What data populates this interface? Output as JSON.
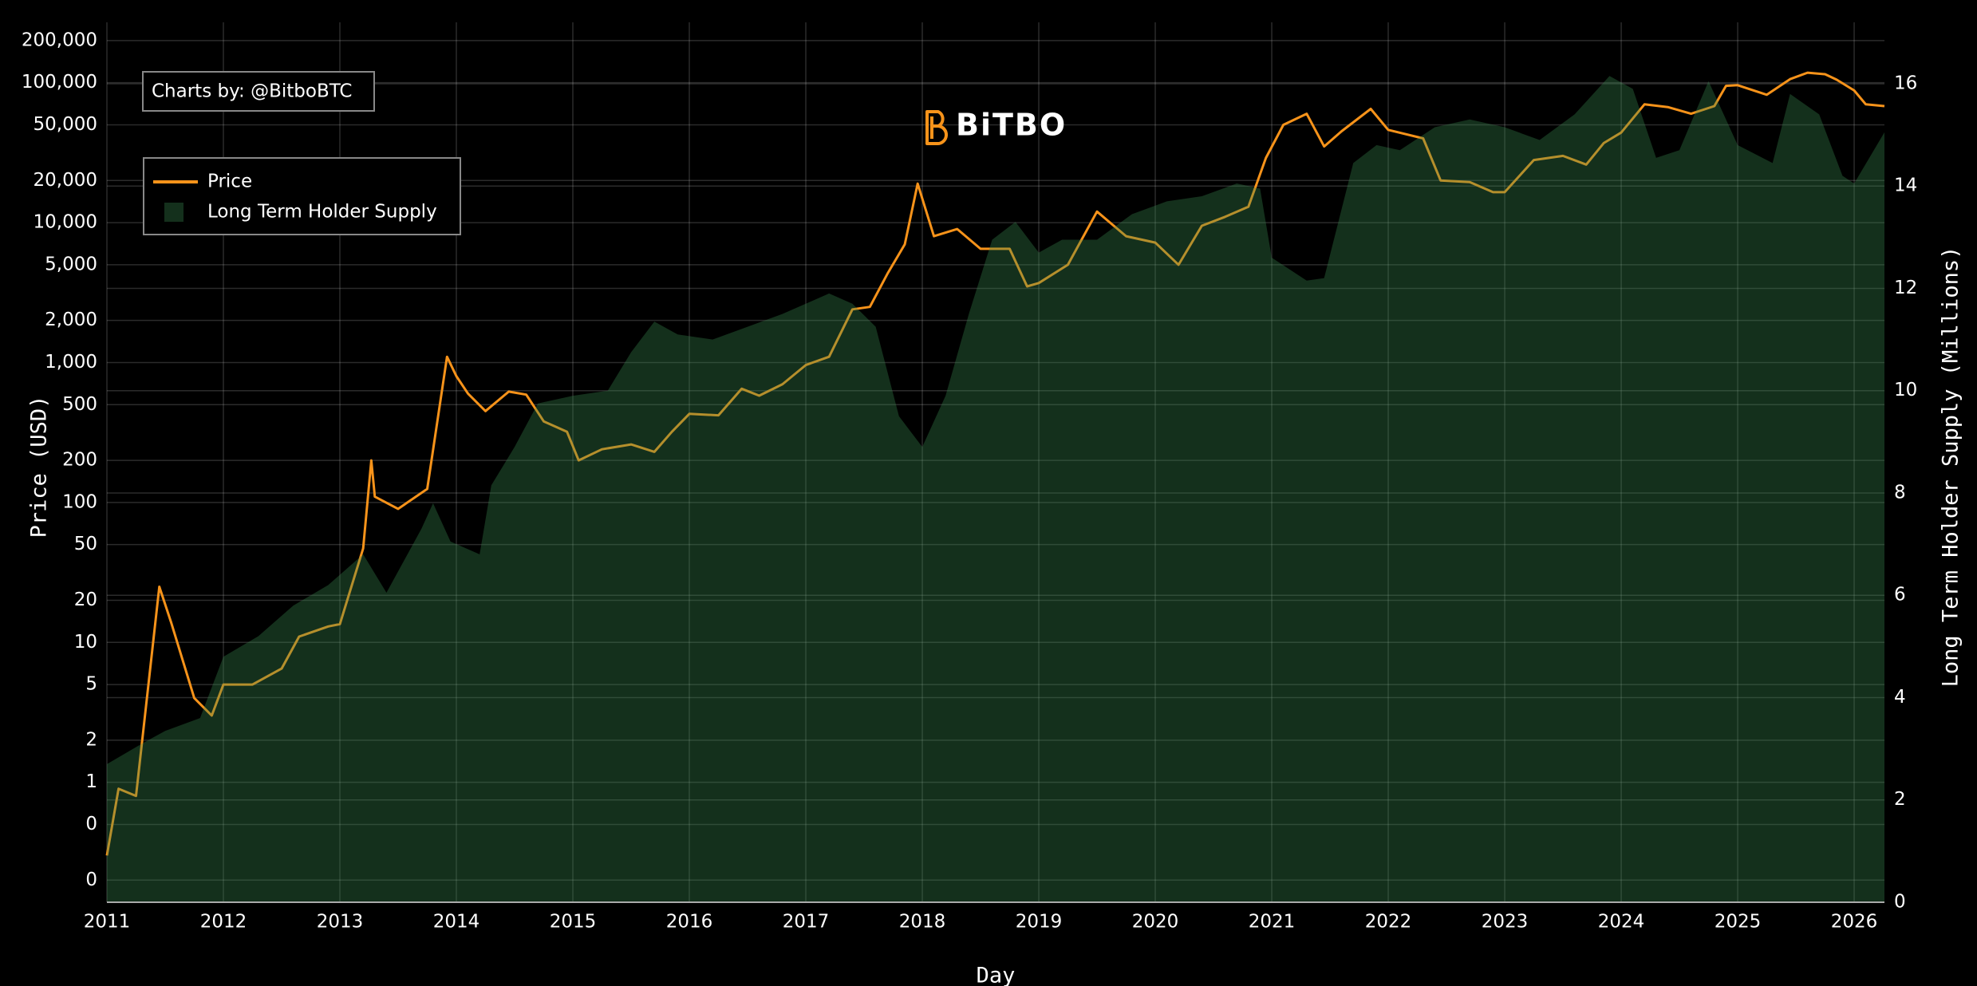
{
  "chart_data": {
    "type": "line",
    "annotation": "Charts by: @BitboBTC",
    "logo": "BiTBO",
    "x_label": "Day",
    "y_label": "Price (USD)",
    "y2_label": "Long Term Holder Supply (Millions)",
    "log_y": true,
    "grid": true,
    "legend": "top-left",
    "xlim": [
      2011,
      2026.26
    ],
    "xticks": [
      2011,
      2012,
      2013,
      2014,
      2015,
      2016,
      2017,
      2018,
      2019,
      2020,
      2021,
      2022,
      2023,
      2024,
      2025,
      2026
    ],
    "ylim": [
      0.139,
      270000
    ],
    "yticks": [
      {
        "value": 0.2,
        "label": "0"
      },
      {
        "value": 0.5,
        "label": "0"
      },
      1,
      2,
      5,
      10,
      20,
      50,
      100,
      200,
      500,
      {
        "value": 1000,
        "label": "1,000"
      },
      {
        "value": 2000,
        "label": "2,000"
      },
      {
        "value": 5000,
        "label": "5,000"
      },
      {
        "value": 10000,
        "label": "10,000"
      },
      {
        "value": 20000,
        "label": "20,000"
      },
      {
        "value": 50000,
        "label": "50,000"
      },
      {
        "value": 100000,
        "label": "100,000"
      },
      {
        "value": 200000,
        "label": "200,000"
      }
    ],
    "y2lim": [
      0,
      17.2
    ],
    "y2ticks": [
      0,
      2,
      4,
      6,
      8,
      10,
      12,
      14,
      16
    ],
    "series": [
      {
        "name": "Price",
        "color": "#f7931a",
        "style": "line",
        "x": [
          2011.0,
          2011.1,
          2011.25,
          2011.45,
          2011.55,
          2011.75,
          2011.9,
          2012.0,
          2012.25,
          2012.5,
          2012.65,
          2012.9,
          2013.0,
          2013.2,
          2013.27,
          2013.3,
          2013.5,
          2013.75,
          2013.92,
          2014.0,
          2014.1,
          2014.25,
          2014.45,
          2014.6,
          2014.75,
          2014.95,
          2015.05,
          2015.25,
          2015.5,
          2015.7,
          2015.85,
          2016.0,
          2016.25,
          2016.45,
          2016.6,
          2016.8,
          2017.0,
          2017.2,
          2017.4,
          2017.55,
          2017.7,
          2017.85,
          2017.96,
          2018.1,
          2018.3,
          2018.5,
          2018.75,
          2018.9,
          2019.0,
          2019.25,
          2019.5,
          2019.75,
          2020.0,
          2020.2,
          2020.4,
          2020.6,
          2020.8,
          2020.95,
          2021.1,
          2021.3,
          2021.45,
          2021.6,
          2021.85,
          2022.0,
          2022.3,
          2022.45,
          2022.7,
          2022.9,
          2023.0,
          2023.25,
          2023.5,
          2023.7,
          2023.85,
          2024.0,
          2024.2,
          2024.4,
          2024.6,
          2024.8,
          2024.9,
          2025.0,
          2025.25,
          2025.45,
          2025.6,
          2025.75,
          2025.85,
          2026.0,
          2026.1,
          2026.26
        ],
        "values": [
          0.3,
          0.9,
          0.8,
          25,
          14,
          4,
          3,
          5,
          5,
          6.5,
          11,
          13,
          13.5,
          47,
          200,
          110,
          90,
          125,
          1100,
          800,
          600,
          450,
          620,
          590,
          380,
          320,
          200,
          240,
          260,
          230,
          320,
          430,
          420,
          650,
          580,
          700,
          960,
          1100,
          2400,
          2500,
          4300,
          7000,
          19000,
          8000,
          9000,
          6500,
          6500,
          3500,
          3700,
          5000,
          12000,
          8000,
          7200,
          5000,
          9500,
          11000,
          13000,
          29000,
          50000,
          60000,
          35000,
          45000,
          65000,
          46000,
          40000,
          20000,
          19500,
          16500,
          16500,
          28000,
          30000,
          26000,
          37000,
          44000,
          70000,
          67000,
          60000,
          68000,
          95000,
          96000,
          82000,
          106000,
          118000,
          115000,
          105000,
          88000,
          70000,
          68000
        ]
      },
      {
        "name": "Long Term Holder Supply",
        "color": "#398950",
        "style": "area",
        "axis": "y2",
        "x": [
          2011.0,
          2011.3,
          2011.5,
          2011.8,
          2012.0,
          2012.3,
          2012.6,
          2012.9,
          2013.2,
          2013.4,
          2013.7,
          2013.8,
          2013.95,
          2014.2,
          2014.3,
          2014.5,
          2014.7,
          2015.0,
          2015.3,
          2015.5,
          2015.7,
          2015.9,
          2016.2,
          2016.5,
          2016.8,
          2017.0,
          2017.2,
          2017.4,
          2017.6,
          2017.8,
          2018.0,
          2018.2,
          2018.4,
          2018.6,
          2018.8,
          2019.0,
          2019.2,
          2019.5,
          2019.8,
          2020.1,
          2020.4,
          2020.7,
          2020.9,
          2021.0,
          2021.3,
          2021.45,
          2021.7,
          2021.9,
          2022.1,
          2022.4,
          2022.7,
          2023.0,
          2023.3,
          2023.6,
          2023.9,
          2024.1,
          2024.3,
          2024.5,
          2024.75,
          2025.0,
          2025.3,
          2025.45,
          2025.7,
          2025.9,
          2026.0,
          2026.26
        ],
        "values": [
          2.7,
          3.1,
          3.35,
          3.6,
          4.8,
          5.2,
          5.8,
          6.2,
          6.8,
          6.05,
          7.3,
          7.8,
          7.05,
          6.8,
          8.15,
          8.9,
          9.75,
          9.9,
          10.0,
          10.75,
          11.35,
          11.1,
          11.0,
          11.25,
          11.5,
          11.7,
          11.9,
          11.7,
          11.25,
          9.5,
          8.9,
          9.9,
          11.5,
          12.95,
          13.3,
          12.7,
          12.95,
          12.95,
          13.45,
          13.7,
          13.8,
          14.05,
          13.95,
          12.6,
          12.15,
          12.2,
          14.45,
          14.8,
          14.7,
          15.15,
          15.3,
          15.15,
          14.9,
          15.4,
          16.15,
          15.9,
          14.55,
          14.7,
          16.05,
          14.8,
          14.45,
          15.8,
          15.4,
          14.2,
          14.05,
          15.05
        ]
      }
    ]
  }
}
